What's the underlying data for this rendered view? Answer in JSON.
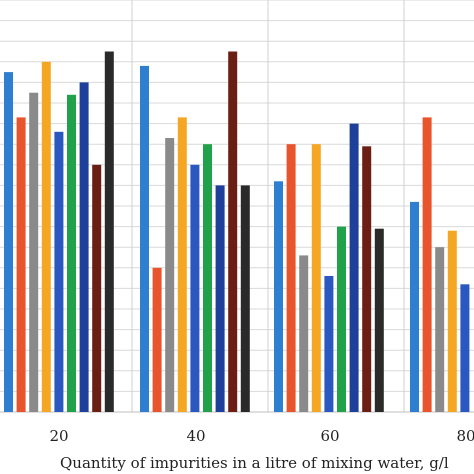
{
  "chart_data": {
    "type": "bar",
    "title": "",
    "xlabel": "Quantity of impurities in a litre of mixing water, g/l",
    "ylabel": "",
    "categories": [
      "20",
      "40",
      "60",
      "80"
    ],
    "ylim": [
      0,
      20
    ],
    "grid": true,
    "series": [
      {
        "color": "#2f7fd0",
        "values": [
          16.5,
          16.8,
          11.2,
          10.2
        ]
      },
      {
        "color": "#e8542b",
        "values": [
          14.3,
          7.0,
          13.0,
          14.3
        ]
      },
      {
        "color": "#8a8a8a",
        "values": [
          15.5,
          13.3,
          7.6,
          8.0
        ]
      },
      {
        "color": "#f5a623",
        "values": [
          17.0,
          14.3,
          13.0,
          8.8
        ]
      },
      {
        "color": "#2a58c0",
        "values": [
          13.6,
          12.0,
          6.6,
          6.2
        ]
      },
      {
        "color": "#21a14a",
        "values": [
          15.4,
          13.0,
          9.0,
          0
        ]
      },
      {
        "color": "#1e3f9a",
        "values": [
          16.0,
          11.0,
          14.0,
          0
        ]
      },
      {
        "color": "#6b1f14",
        "values": [
          12.0,
          17.5,
          12.9,
          0
        ]
      },
      {
        "color": "#2a2a2a",
        "values": [
          17.5,
          11.0,
          8.9,
          0
        ]
      }
    ]
  }
}
